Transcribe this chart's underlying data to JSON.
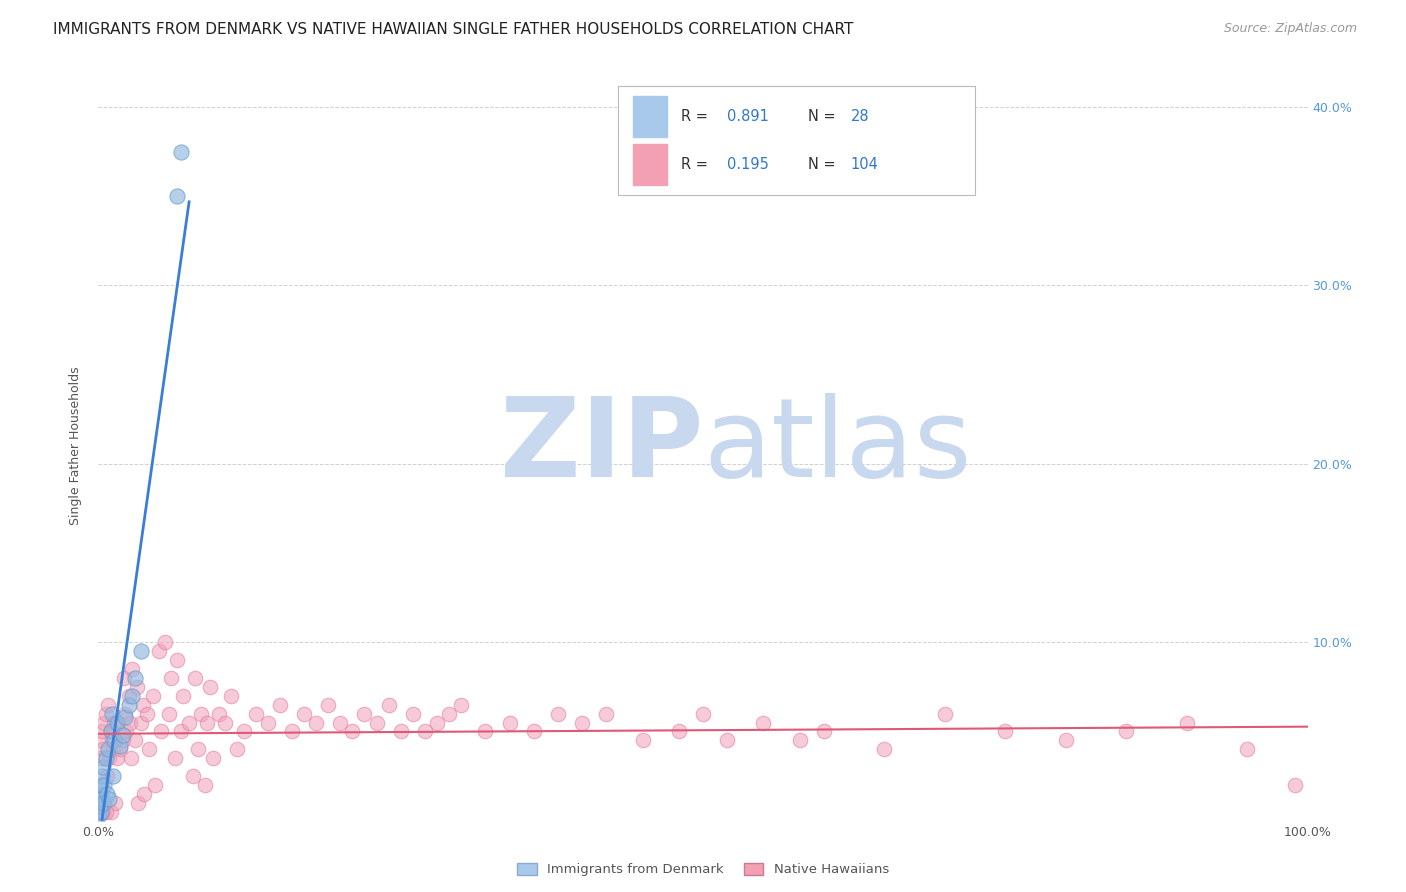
{
  "title": "IMMIGRANTS FROM DENMARK VS NATIVE HAWAIIAN SINGLE FATHER HOUSEHOLDS CORRELATION CHART",
  "source": "Source: ZipAtlas.com",
  "ylabel_left": "Single Father Households",
  "legend_entries": [
    {
      "label": "Immigrants from Denmark",
      "R": "0.891",
      "N": "28",
      "color": "#a8c8ec"
    },
    {
      "label": "Native Hawaiians",
      "R": "0.195",
      "N": "104",
      "color": "#f4a0b4"
    }
  ],
  "background_color": "#ffffff",
  "grid_color": "#cccccc",
  "scatter_blue_color": "#90b8e0",
  "scatter_blue_edge": "#6898c8",
  "scatter_pink_color": "#f0a0b8",
  "scatter_pink_edge": "#e07898",
  "trend_blue_color": "#3a7fd5",
  "trend_pink_color": "#e05878",
  "watermark_zip_color": "#c8d8ee",
  "watermark_atlas_color": "#c8d8ee",
  "title_fontsize": 11,
  "source_fontsize": 9,
  "axis_label_fontsize": 9,
  "tick_fontsize": 9,
  "xlim": [
    0.0,
    1.0
  ],
  "ylim": [
    0.0,
    0.42
  ],
  "blue_x": [
    0.0005,
    0.001,
    0.001,
    0.002,
    0.002,
    0.003,
    0.003,
    0.004,
    0.004,
    0.005,
    0.006,
    0.007,
    0.008,
    0.009,
    0.01,
    0.011,
    0.012,
    0.013,
    0.015,
    0.018,
    0.02,
    0.022,
    0.025,
    0.028,
    0.03,
    0.035,
    0.065,
    0.068
  ],
  "blue_y": [
    0.003,
    0.008,
    0.015,
    0.005,
    0.02,
    0.012,
    0.025,
    0.01,
    0.03,
    0.02,
    0.035,
    0.015,
    0.04,
    0.012,
    0.05,
    0.06,
    0.025,
    0.045,
    0.055,
    0.042,
    0.048,
    0.058,
    0.065,
    0.07,
    0.08,
    0.095,
    0.35,
    0.375
  ],
  "pink_x": [
    0.001,
    0.002,
    0.003,
    0.003,
    0.004,
    0.005,
    0.005,
    0.006,
    0.007,
    0.008,
    0.009,
    0.01,
    0.01,
    0.011,
    0.012,
    0.013,
    0.014,
    0.015,
    0.016,
    0.018,
    0.02,
    0.021,
    0.022,
    0.023,
    0.025,
    0.026,
    0.027,
    0.028,
    0.03,
    0.032,
    0.033,
    0.035,
    0.037,
    0.038,
    0.04,
    0.042,
    0.045,
    0.047,
    0.05,
    0.052,
    0.055,
    0.058,
    0.06,
    0.063,
    0.065,
    0.068,
    0.07,
    0.075,
    0.078,
    0.08,
    0.082,
    0.085,
    0.088,
    0.09,
    0.092,
    0.095,
    0.1,
    0.105,
    0.11,
    0.115,
    0.12,
    0.13,
    0.14,
    0.15,
    0.16,
    0.17,
    0.18,
    0.19,
    0.2,
    0.21,
    0.22,
    0.23,
    0.24,
    0.25,
    0.26,
    0.27,
    0.28,
    0.29,
    0.3,
    0.32,
    0.34,
    0.36,
    0.38,
    0.4,
    0.42,
    0.45,
    0.48,
    0.5,
    0.52,
    0.55,
    0.58,
    0.6,
    0.65,
    0.7,
    0.75,
    0.8,
    0.85,
    0.9,
    0.95,
    0.99,
    0.002,
    0.003,
    0.004,
    0.006
  ],
  "pink_y": [
    0.045,
    0.035,
    0.05,
    0.005,
    0.04,
    0.055,
    0.01,
    0.06,
    0.025,
    0.065,
    0.035,
    0.05,
    0.005,
    0.045,
    0.04,
    0.055,
    0.01,
    0.035,
    0.055,
    0.04,
    0.045,
    0.08,
    0.06,
    0.05,
    0.07,
    0.055,
    0.035,
    0.085,
    0.045,
    0.075,
    0.01,
    0.055,
    0.065,
    0.015,
    0.06,
    0.04,
    0.07,
    0.02,
    0.095,
    0.05,
    0.1,
    0.06,
    0.08,
    0.035,
    0.09,
    0.05,
    0.07,
    0.055,
    0.025,
    0.08,
    0.04,
    0.06,
    0.02,
    0.055,
    0.075,
    0.035,
    0.06,
    0.055,
    0.07,
    0.04,
    0.05,
    0.06,
    0.055,
    0.065,
    0.05,
    0.06,
    0.055,
    0.065,
    0.055,
    0.05,
    0.06,
    0.055,
    0.065,
    0.05,
    0.06,
    0.05,
    0.055,
    0.06,
    0.065,
    0.05,
    0.055,
    0.05,
    0.06,
    0.055,
    0.06,
    0.045,
    0.05,
    0.06,
    0.045,
    0.055,
    0.045,
    0.05,
    0.04,
    0.06,
    0.05,
    0.045,
    0.05,
    0.055,
    0.04,
    0.02,
    0.005,
    0.005,
    0.005,
    0.005
  ]
}
